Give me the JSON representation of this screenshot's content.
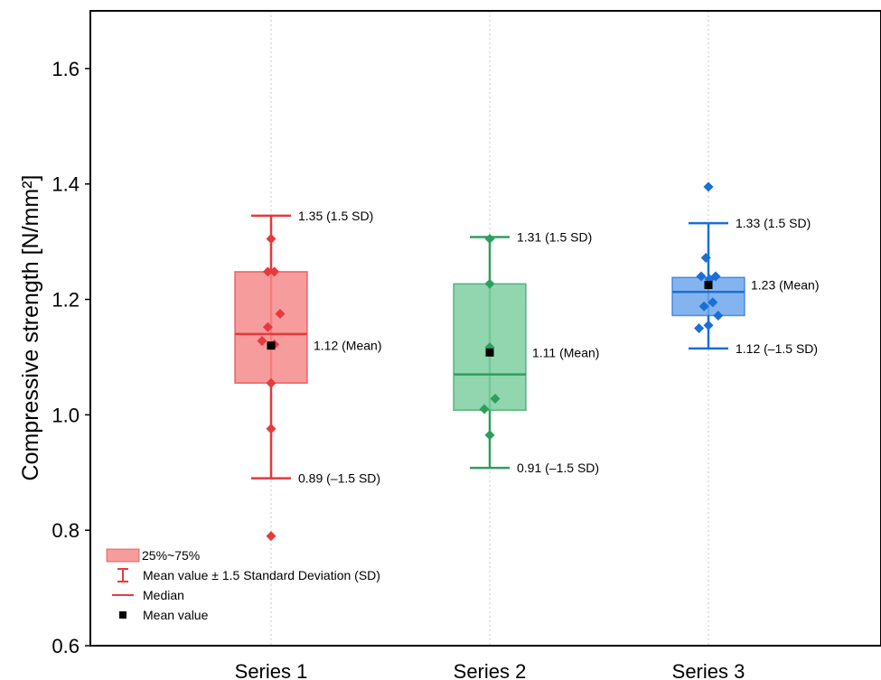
{
  "chart_data": {
    "type": "box",
    "title": "",
    "xlabel": "",
    "ylabel": "Compressive strength [N/mm²]",
    "ylim": [
      0.6,
      1.7
    ],
    "yticks": [
      0.6,
      0.8,
      1.0,
      1.2,
      1.4,
      1.6
    ],
    "ytick_labels": [
      "0.6",
      "0.8",
      "1.0",
      "1.2",
      "1.4",
      "1.6"
    ],
    "grid": "vertical dotted at categories",
    "legend_position": "bottom-left",
    "legend": [
      {
        "kind": "box",
        "label": "25%~75%"
      },
      {
        "kind": "whisker",
        "label": "Mean value ± 1.5 Standard Deviation (SD)"
      },
      {
        "kind": "median",
        "label": "Median"
      },
      {
        "kind": "mean",
        "label": "Mean value"
      }
    ],
    "series": [
      {
        "name": "Series 1",
        "color": "#e8393c",
        "fill": "#f58b8c",
        "q1": 1.055,
        "q3": 1.248,
        "median": 1.14,
        "mean": 1.12,
        "whisker_low": 0.89,
        "whisker_high": 1.345,
        "points": [
          {
            "y": 1.305,
            "dx": 0.0
          },
          {
            "y": 1.248,
            "dx": -0.09
          },
          {
            "y": 1.248,
            "dx": 0.09
          },
          {
            "y": 1.175,
            "dx": 0.25
          },
          {
            "y": 1.152,
            "dx": -0.09
          },
          {
            "y": 1.128,
            "dx": -0.25
          },
          {
            "y": 1.122,
            "dx": 0.09
          },
          {
            "y": 1.055,
            "dx": 0.0
          },
          {
            "y": 0.976,
            "dx": 0.0
          },
          {
            "y": 0.79,
            "dx": 0.0
          }
        ],
        "annotations": {
          "high": "1.35 (1.5 SD)",
          "mean": "1.12 (Mean)",
          "low": "0.89 (–1.5 SD)"
        }
      },
      {
        "name": "Series 2",
        "color": "#2e9e5e",
        "fill": "#7ecfa0",
        "q1": 1.008,
        "q3": 1.227,
        "median": 1.07,
        "mean": 1.108,
        "whisker_low": 0.908,
        "whisker_high": 1.308,
        "points": [
          {
            "y": 1.305,
            "dx": 0.0
          },
          {
            "y": 1.227,
            "dx": 0.0
          },
          {
            "y": 1.117,
            "dx": 0.0
          },
          {
            "y": 1.028,
            "dx": 0.15
          },
          {
            "y": 1.01,
            "dx": -0.15
          },
          {
            "y": 0.965,
            "dx": 0.0
          }
        ],
        "annotations": {
          "high": "1.31 (1.5 SD)",
          "mean": "1.11 (Mean)",
          "low": "0.91 (–1.5 SD)"
        }
      },
      {
        "name": "Series 3",
        "color": "#1a6fd6",
        "fill": "#6ea7ec",
        "q1": 1.172,
        "q3": 1.238,
        "median": 1.213,
        "mean": 1.225,
        "whisker_low": 1.115,
        "whisker_high": 1.332,
        "points": [
          {
            "y": 1.395,
            "dx": 0.0
          },
          {
            "y": 1.272,
            "dx": -0.07
          },
          {
            "y": 1.24,
            "dx": -0.2
          },
          {
            "y": 1.24,
            "dx": 0.2
          },
          {
            "y": 1.235,
            "dx": 0.03
          },
          {
            "y": 1.195,
            "dx": 0.12
          },
          {
            "y": 1.188,
            "dx": -0.12
          },
          {
            "y": 1.172,
            "dx": 0.27
          },
          {
            "y": 1.155,
            "dx": 0.0
          },
          {
            "y": 1.15,
            "dx": -0.26
          }
        ],
        "annotations": {
          "high": "1.33 (1.5 SD)",
          "mean": "1.23 (Mean)",
          "low": "1.12 (–1.5 SD)"
        }
      }
    ]
  }
}
